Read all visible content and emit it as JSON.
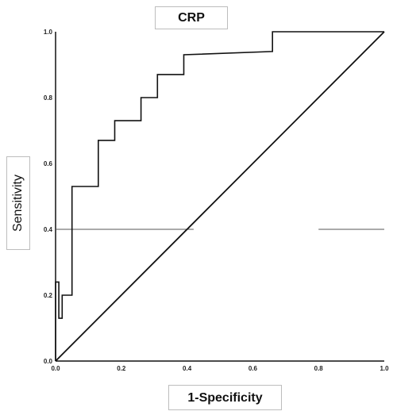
{
  "chart_data": {
    "type": "line",
    "title": "CRP",
    "xlabel": "1-Specificity",
    "ylabel": "Sensitivity",
    "xlim": [
      0,
      1
    ],
    "ylim": [
      0,
      1
    ],
    "x_ticks": [
      "0.0",
      "0.2",
      "0.4",
      "0.6",
      "0.8",
      "1.0"
    ],
    "y_ticks": [
      "0.0",
      "0.2",
      "0.4",
      "0.6",
      "0.8",
      "1.0"
    ],
    "grid": false,
    "series": [
      {
        "x": [
          0,
          0,
          0.01,
          0.01,
          0.02,
          0.02,
          0.05,
          0.05,
          0.13,
          0.13,
          0.18,
          0.18,
          0.26,
          0.26,
          0.31,
          0.31,
          0.39,
          0.39,
          0.66,
          0.66,
          1.0
        ],
        "y": [
          0,
          0.24,
          0.24,
          0.13,
          0.13,
          0.2,
          0.2,
          0.53,
          0.53,
          0.67,
          0.67,
          0.73,
          0.73,
          0.8,
          0.8,
          0.87,
          0.87,
          0.93,
          0.94,
          1.0,
          1.0
        ],
        "color": "#111111"
      },
      {
        "x": [
          0,
          1
        ],
        "y": [
          0,
          1
        ],
        "color": "#111111"
      }
    ]
  }
}
